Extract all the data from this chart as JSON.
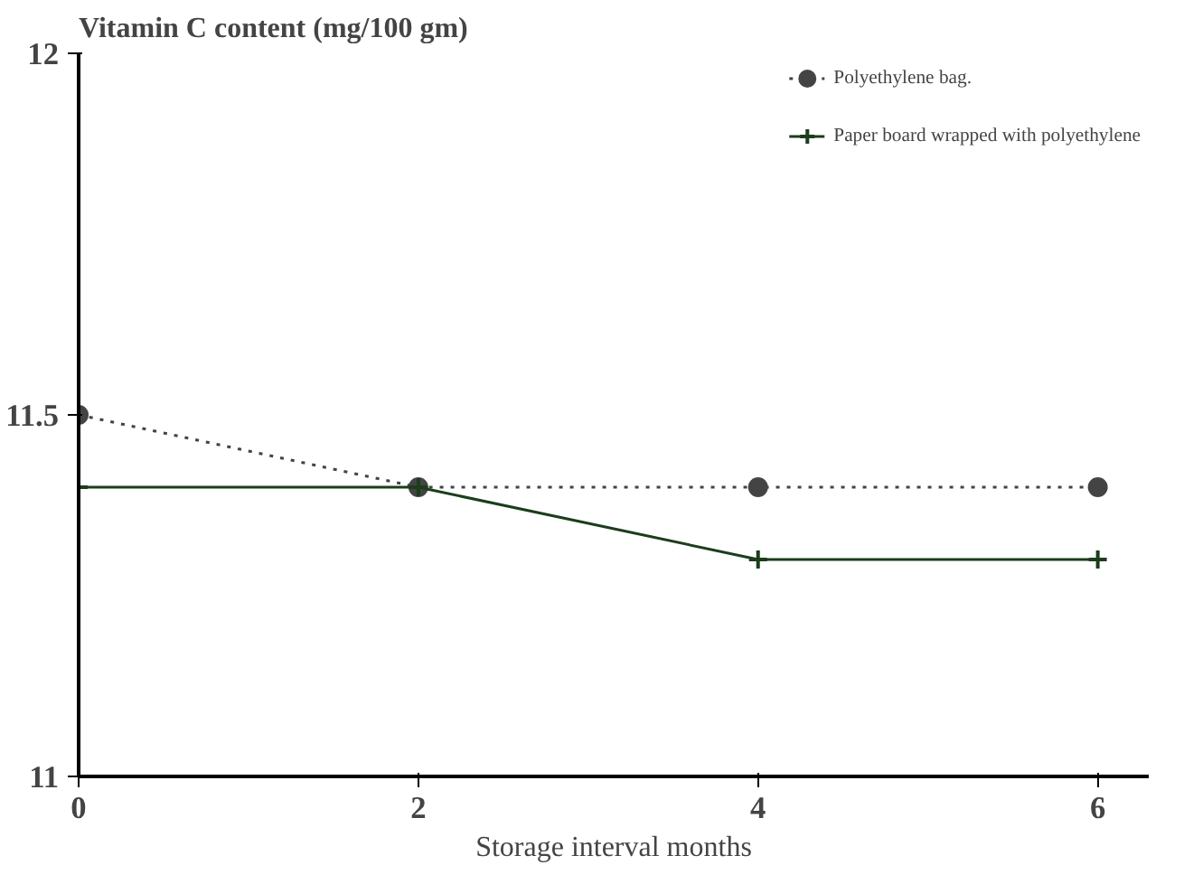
{
  "chart_data": {
    "type": "line",
    "ylabel": "Vitamin C content (mg/100 gm)",
    "xlabel": "Storage interval months",
    "x": [
      0,
      2,
      4,
      6
    ],
    "xlim": [
      0,
      6.3
    ],
    "xticks": [
      0,
      2,
      4,
      6
    ],
    "ylim": [
      11,
      12
    ],
    "yticks": [
      11,
      11.5,
      12
    ],
    "series": [
      {
        "name": "Polyethylene bag.",
        "color": "#444444",
        "values": [
          11.5,
          11.4,
          11.4,
          11.4
        ],
        "marker": "circle",
        "line_style": "dotted"
      },
      {
        "name": "Paper board wrapped with polyethylene",
        "color": "#1b3d1b",
        "values": [
          11.4,
          11.4,
          11.3,
          11.3
        ],
        "marker": "cross",
        "line_style": "solid"
      }
    ],
    "grid": false,
    "legend": "top right"
  }
}
